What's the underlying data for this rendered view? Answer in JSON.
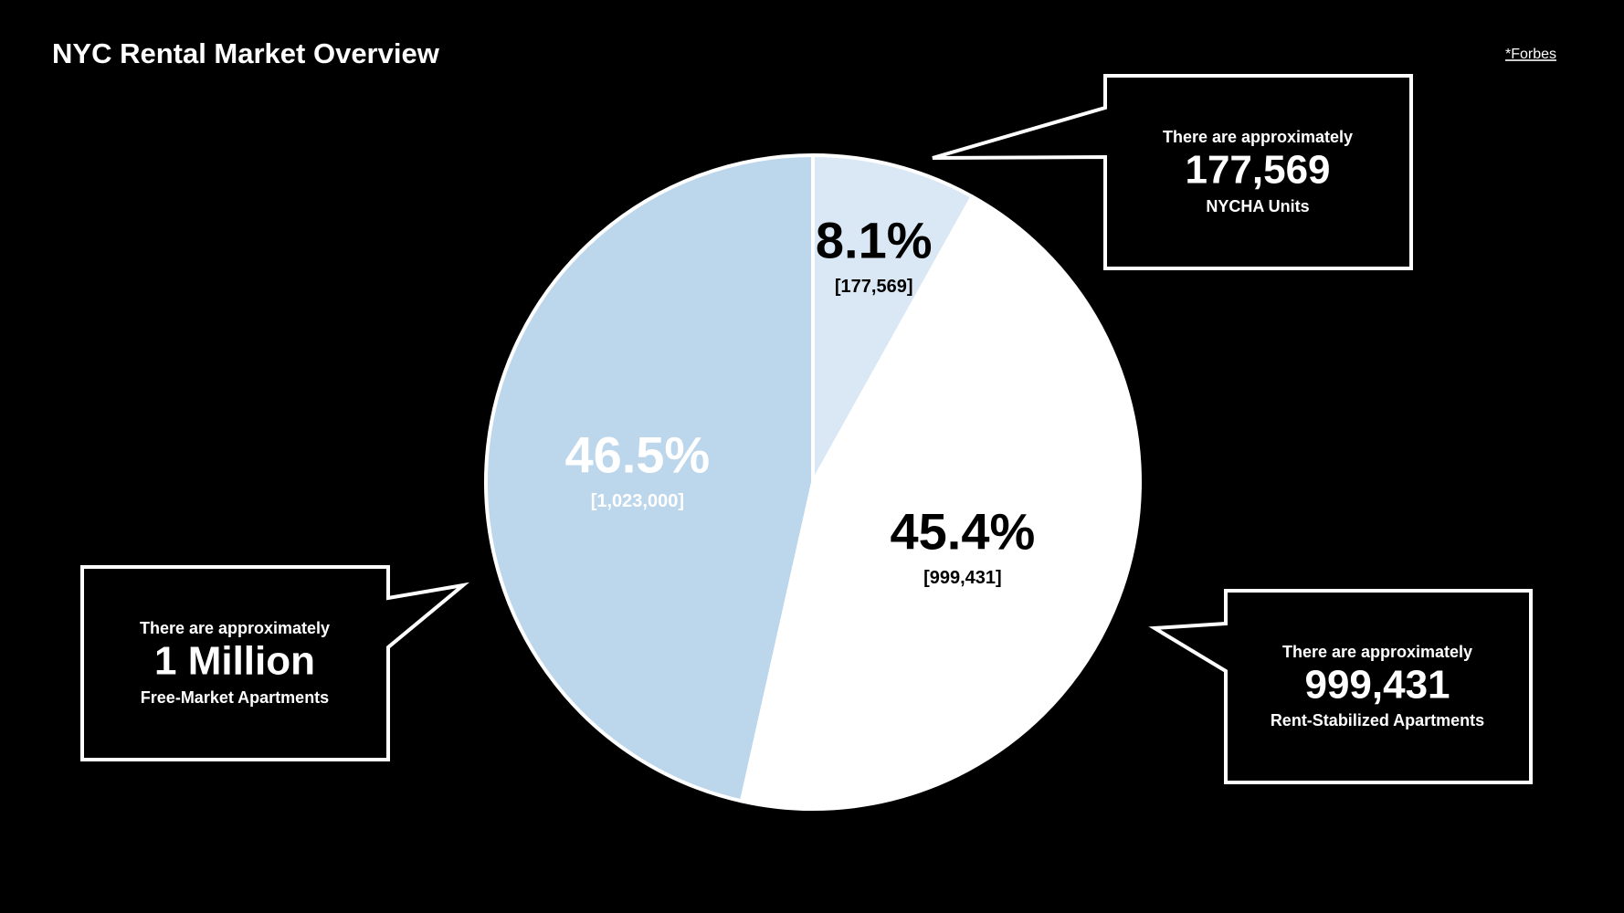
{
  "chart_data": {
    "type": "pie",
    "title": "NYC Rental Market Overview",
    "source": "*Forbes",
    "values": [
      8.1,
      45.4,
      46.5
    ],
    "value_labels": [
      "8.1%",
      "45.4%",
      "46.5%"
    ],
    "count_labels": [
      "[177,569]",
      "[999,431]",
      "[1,023,000]"
    ],
    "colors": [
      "#dae8f5",
      "#ffffff",
      "#bcd6ec"
    ],
    "label_colors": [
      "#000000",
      "#000000",
      "#ffffff"
    ],
    "annotations": [
      {
        "intro": "There are approximately",
        "number": "177,569",
        "text": "NYCHA Units"
      },
      {
        "intro": "There are approximately",
        "number": "999,431",
        "text": "Rent-Stabilized Apartments"
      },
      {
        "intro": "There are approximately",
        "number": "1 Million",
        "text": "Free-Market Apartments"
      }
    ]
  }
}
